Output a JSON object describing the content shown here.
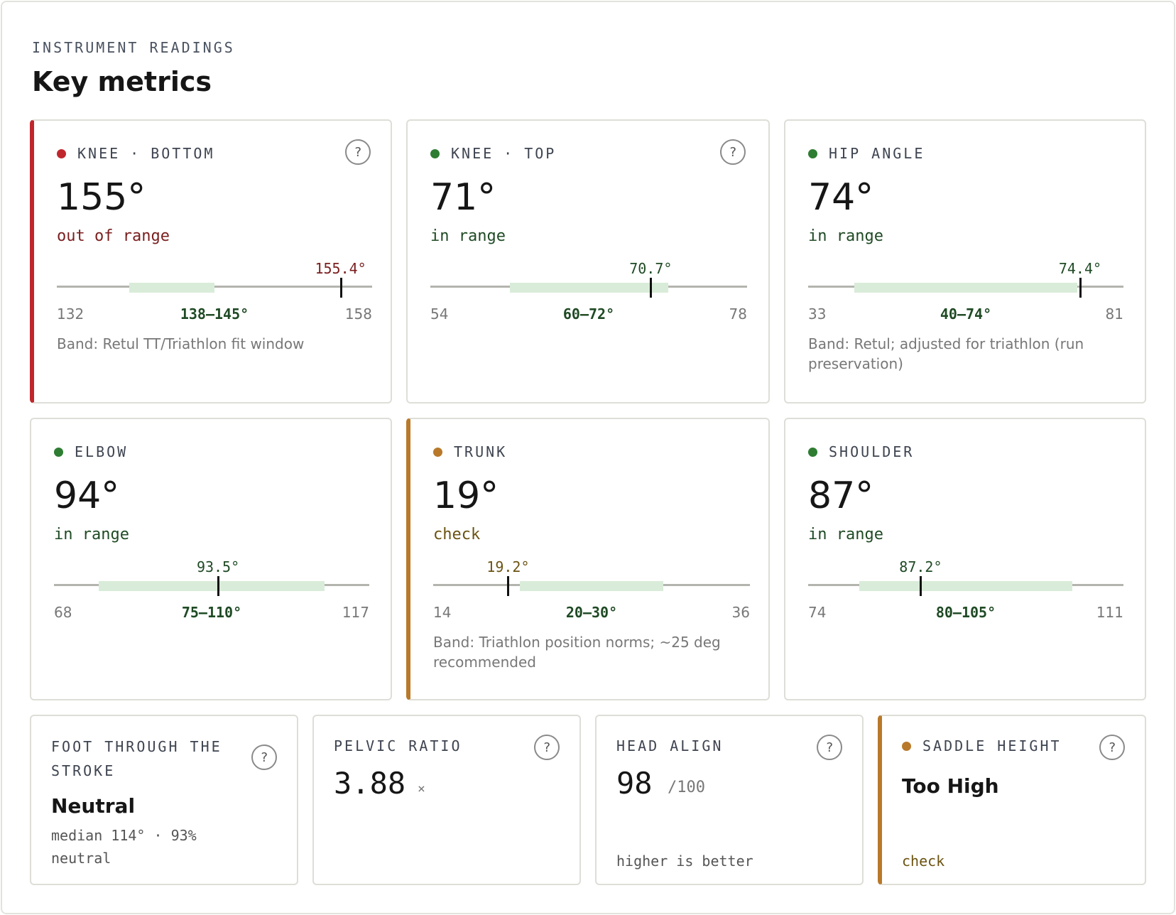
{
  "header": {
    "eyebrow": "INSTRUMENT READINGS",
    "title": "Key metrics"
  },
  "colors": {
    "red": "#c0272d",
    "green": "#2e7d32",
    "amber": "#b8792a"
  },
  "help_glyph": "?",
  "metrics": [
    {
      "label_a": "KNEE",
      "sep": "·",
      "label_b": "BOTTOM",
      "status_color": "red",
      "value": "155°",
      "status": "out of range",
      "reading": "155.4°",
      "reading_value": 155.4,
      "min": "132",
      "max": "158",
      "range_min": 132,
      "range_max": 158,
      "band": "138–145°",
      "band_low": 138,
      "band_high": 145,
      "note": "Band: Retul TT/Triathlon fit window",
      "has_help": true
    },
    {
      "label_a": "KNEE",
      "sep": "·",
      "label_b": "TOP",
      "status_color": "green",
      "value": "71°",
      "status": "in range",
      "reading": "70.7°",
      "reading_value": 70.7,
      "min": "54",
      "max": "78",
      "range_min": 54,
      "range_max": 78,
      "band": "60–72°",
      "band_low": 60,
      "band_high": 72,
      "note": "",
      "has_help": true
    },
    {
      "label_a": "HIP ANGLE",
      "status_color": "green",
      "value": "74°",
      "status": "in range",
      "reading": "74.4°",
      "reading_value": 74.4,
      "min": "33",
      "max": "81",
      "range_min": 33,
      "range_max": 81,
      "band": "40–74°",
      "band_low": 40,
      "band_high": 74,
      "note": "Band: Retul; adjusted for triathlon (run preservation)",
      "has_help": false
    },
    {
      "label_a": "ELBOW",
      "status_color": "green",
      "value": "94°",
      "status": "in range",
      "reading": "93.5°",
      "reading_value": 93.5,
      "min": "68",
      "max": "117",
      "range_min": 68,
      "range_max": 117,
      "band": "75–110°",
      "band_low": 75,
      "band_high": 110,
      "note": "",
      "has_help": false
    },
    {
      "label_a": "TRUNK",
      "status_color": "amber",
      "value": "19°",
      "status": "check",
      "reading": "19.2°",
      "reading_value": 19.2,
      "min": "14",
      "max": "36",
      "range_min": 14,
      "range_max": 36,
      "band": "20–30°",
      "band_low": 20,
      "band_high": 30,
      "note": "Band: Triathlon position norms; ~25 deg recommended",
      "has_help": false
    },
    {
      "label_a": "SHOULDER",
      "status_color": "green",
      "value": "87°",
      "status": "in range",
      "reading": "87.2°",
      "reading_value": 87.2,
      "min": "74",
      "max": "111",
      "range_min": 74,
      "range_max": 111,
      "band": "80–105°",
      "band_low": 80,
      "band_high": 105,
      "note": "",
      "has_help": false
    }
  ],
  "small_cards": {
    "foot": {
      "label": "FOOT THROUGH THE STROKE",
      "value": "Neutral",
      "detail": "median 114° · 93% neutral"
    },
    "pelvic": {
      "label": "PELVIC RATIO",
      "value": "3.88",
      "unit": "×"
    },
    "head": {
      "label": "HEAD ALIGN",
      "value": "98",
      "unit": "/100",
      "footer": "higher is better"
    },
    "saddle": {
      "label": "SADDLE HEIGHT",
      "value": "Too High",
      "footer": "check",
      "status_color": "amber"
    }
  }
}
